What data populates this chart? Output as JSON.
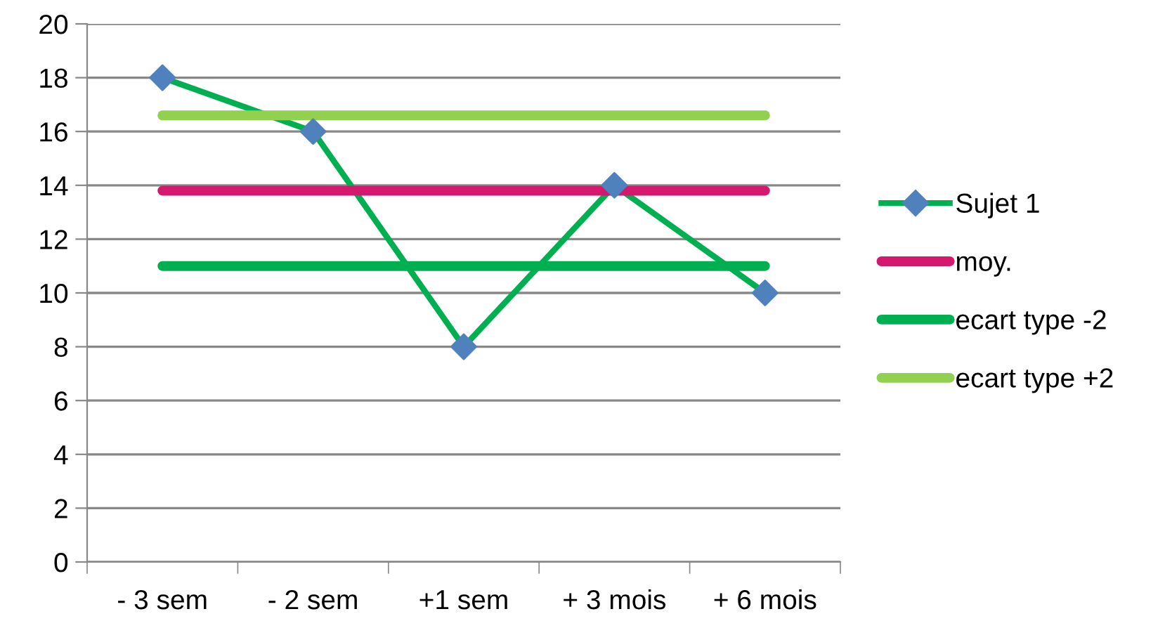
{
  "chart_data": {
    "type": "line",
    "categories": [
      "- 3 sem",
      "- 2 sem",
      "+1 sem",
      "+ 3 mois",
      "+ 6 mois"
    ],
    "series": [
      {
        "name": "Sujet 1",
        "color": "#00b050",
        "marker": "diamond",
        "colors": [
          "#4f81bd",
          "#4f81bd",
          "#4f81bd",
          "#4f81bd",
          "#4f81bd"
        ],
        "values": [
          18,
          16,
          8,
          14,
          10
        ]
      },
      {
        "name": "moy.",
        "color": "#d5176e",
        "marker": "none",
        "values": [
          13.8,
          13.8,
          13.8,
          13.8,
          13.8
        ]
      },
      {
        "name": "ecart type -2",
        "color": "#00b050",
        "marker": "none",
        "values": [
          11.0,
          11.0,
          11.0,
          11.0,
          11.0
        ]
      },
      {
        "name": "ecart type +2",
        "color": "#92d050",
        "marker": "none",
        "values": [
          16.6,
          16.6,
          16.6,
          16.6,
          16.6
        ]
      }
    ],
    "ylim": [
      0,
      20
    ],
    "yticks": [
      0,
      2,
      4,
      6,
      8,
      10,
      12,
      14,
      16,
      18,
      20
    ],
    "grid": "y",
    "legend": "right",
    "line_style": "solid"
  }
}
